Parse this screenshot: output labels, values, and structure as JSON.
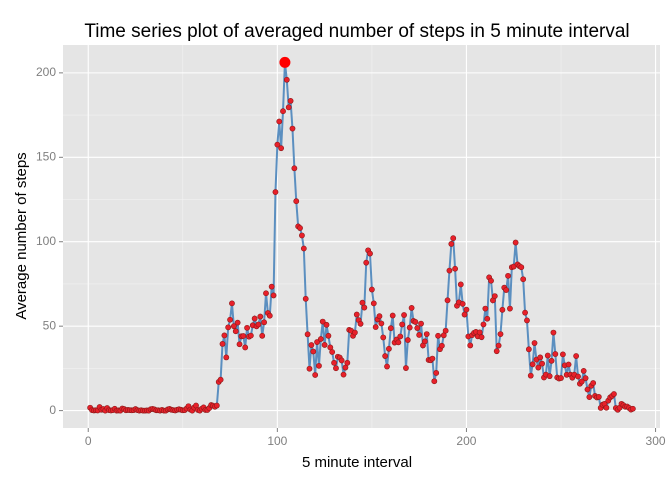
{
  "chart_data": {
    "type": "line",
    "title": "Time series plot of averaged number of steps in 5 minute interval",
    "x_label": "5 minute interval",
    "y_label": "Average number of steps",
    "x": [
      1,
      2,
      3,
      4,
      5,
      6,
      7,
      8,
      9,
      10,
      11,
      12,
      13,
      14,
      15,
      16,
      17,
      18,
      19,
      20,
      21,
      22,
      23,
      24,
      25,
      26,
      27,
      28,
      29,
      30,
      31,
      32,
      33,
      34,
      35,
      36,
      37,
      38,
      39,
      40,
      41,
      42,
      43,
      44,
      45,
      46,
      47,
      48,
      49,
      50,
      51,
      52,
      53,
      54,
      55,
      56,
      57,
      58,
      59,
      60,
      61,
      62,
      63,
      64,
      65,
      66,
      67,
      68,
      69,
      70,
      71,
      72,
      73,
      74,
      75,
      76,
      77,
      78,
      79,
      80,
      81,
      82,
      83,
      84,
      85,
      86,
      87,
      88,
      89,
      90,
      91,
      92,
      93,
      94,
      95,
      96,
      97,
      98,
      99,
      100,
      101,
      102,
      103,
      104,
      105,
      106,
      107,
      108,
      109,
      110,
      111,
      112,
      113,
      114,
      115,
      116,
      117,
      118,
      119,
      120,
      121,
      122,
      123,
      124,
      125,
      126,
      127,
      128,
      129,
      130,
      131,
      132,
      133,
      134,
      135,
      136,
      137,
      138,
      139,
      140,
      141,
      142,
      143,
      144,
      145,
      146,
      147,
      148,
      149,
      150,
      151,
      152,
      153,
      154,
      155,
      156,
      157,
      158,
      159,
      160,
      161,
      162,
      163,
      164,
      165,
      166,
      167,
      168,
      169,
      170,
      171,
      172,
      173,
      174,
      175,
      176,
      177,
      178,
      179,
      180,
      181,
      182,
      183,
      184,
      185,
      186,
      187,
      188,
      189,
      190,
      191,
      192,
      193,
      194,
      195,
      196,
      197,
      198,
      199,
      200,
      201,
      202,
      203,
      204,
      205,
      206,
      207,
      208,
      209,
      210,
      211,
      212,
      213,
      214,
      215,
      216,
      217,
      218,
      219,
      220,
      221,
      222,
      223,
      224,
      225,
      226,
      227,
      228,
      229,
      230,
      231,
      232,
      233,
      234,
      235,
      236,
      237,
      238,
      239,
      240,
      241,
      242,
      243,
      244,
      245,
      246,
      247,
      248,
      249,
      250,
      251,
      252,
      253,
      254,
      255,
      256,
      257,
      258,
      259,
      260,
      261,
      262,
      263,
      264,
      265,
      266,
      267,
      268,
      269,
      270,
      271,
      272,
      273,
      274,
      275,
      276,
      277,
      278,
      279,
      280,
      281,
      282,
      283,
      284,
      285,
      286,
      287,
      288
    ],
    "values": [
      1.7,
      0.3,
      0.1,
      0.2,
      0.1,
      2.1,
      0.5,
      0.9,
      0,
      1.5,
      0.3,
      0.1,
      0.3,
      1.1,
      0,
      0.1,
      0,
      1.2,
      0.9,
      0.2,
      0.4,
      0.3,
      0.2,
      0.3,
      0.9,
      0.3,
      0,
      0.2,
      0,
      0,
      0.1,
      0,
      0.8,
      1.0,
      0.7,
      0.2,
      0.2,
      0,
      0.4,
      0,
      0,
      0.7,
      1.0,
      0.5,
      0.3,
      0.1,
      0.5,
      0.8,
      0.5,
      0.2,
      0.3,
      1.2,
      2.6,
      0.6,
      0,
      1.8,
      3.0,
      0.4,
      0,
      1.1,
      1.9,
      0.4,
      0.4,
      1.5,
      3.3,
      2.9,
      2.3,
      3.0,
      17.0,
      18.3,
      39.5,
      44.5,
      31.5,
      49.3,
      53.8,
      63.5,
      50,
      47,
      52.1,
      39.3,
      44,
      44.2,
      37.4,
      49,
      43.8,
      44.4,
      50.5,
      54.5,
      49.9,
      51.0,
      55.7,
      44.3,
      52.3,
      69.5,
      57.8,
      56.2,
      73.4,
      68.2,
      129.4,
      157.5,
      171.2,
      155.4,
      177.3,
      206.2,
      195.9,
      179.6,
      183.4,
      167.0,
      143.5,
      124.0,
      109.1,
      108.1,
      103.7,
      96.0,
      66.2,
      45.2,
      24.8,
      38.8,
      35.0,
      21.1,
      40.6,
      26.5,
      42.4,
      52.7,
      38.9,
      50.8,
      44.3,
      37.4,
      34.7,
      28.3,
      25.1,
      31.9,
      31.4,
      29.7,
      21.3,
      25.5,
      28.3,
      47.8,
      47.3,
      44.3,
      46.2,
      56.9,
      53.6,
      51.4,
      63.9,
      61.0,
      87.6,
      94.9,
      93.0,
      71.7,
      63.5,
      49.5,
      54.0,
      55.9,
      51.6,
      43.3,
      32.3,
      26.1,
      36.6,
      48.8,
      56.3,
      40.3,
      42.1,
      40.4,
      43.9,
      51.0,
      56.6,
      25.2,
      41.8,
      49.2,
      60.8,
      53.1,
      52.5,
      48.9,
      44.8,
      51.5,
      38.6,
      41.0,
      45.3,
      30.0,
      29.8,
      30.8,
      17.4,
      22.3,
      44.3,
      36.4,
      38.4,
      44.6,
      47.3,
      65.3,
      82.9,
      98.7,
      102.1,
      84.0,
      62.1,
      64.1,
      74.7,
      63.2,
      56.9,
      59.8,
      43.9,
      38.6,
      44.7,
      46.0,
      46.6,
      44.0,
      46.3,
      43.5,
      51.0,
      60.4,
      54.4,
      78.9,
      76.9,
      65.3,
      67.8,
      35.2,
      38.5,
      45.3,
      59.7,
      72.8,
      71.4,
      79.8,
      60.4,
      84.9,
      85.3,
      99.5,
      86.6,
      85.6,
      84.9,
      77.8,
      58.0,
      53.4,
      36.3,
      20.7,
      27.4,
      40.0,
      30.2,
      25.5,
      31.5,
      27.8,
      19.6,
      21.3,
      32.6,
      20.4,
      29.5,
      46.2,
      33.5,
      19.6,
      19.0,
      19.3,
      33.3,
      26.8,
      21.2,
      27.3,
      21.3,
      19.5,
      21.3,
      32.3,
      20.2,
      15.9,
      17.2,
      23.5,
      19.2,
      12.5,
      8.0,
      14.7,
      16.3,
      8.7,
      7.8,
      8.1,
      1.6,
      3.5,
      4.0,
      1.7,
      5.9,
      7.8,
      8.7,
      9.8,
      1.5,
      0.5,
      1.7,
      4.0,
      3.2,
      2.3,
      2.4,
      1.6,
      0.6,
      1.1
    ],
    "line_color": "#5b8fc0",
    "point_color": "#e8202a",
    "max_color": "#ff0000",
    "xlim": [
      -13.35,
      302.35
    ],
    "ylim": [
      -10.3,
      216.5
    ],
    "xticks": [
      0,
      100,
      200,
      300
    ],
    "yticks": [
      0,
      50,
      100,
      150,
      200
    ],
    "grid": true
  }
}
